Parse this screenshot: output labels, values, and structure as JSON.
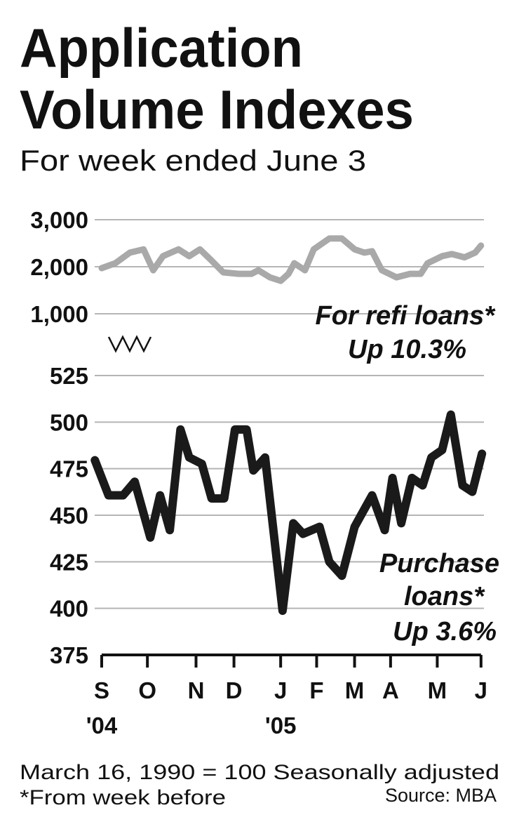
{
  "title": [
    "Application",
    "Volume Indexes"
  ],
  "subtitle": "For week ended June 3",
  "note": "March 16, 1990 = 100 Seasonally adjusted",
  "footnote": "*From week before",
  "source": "Source: MBA",
  "chart_data": [
    {
      "type": "line",
      "annotations": [
        "For refi loans*",
        "Up 10.3%"
      ],
      "xlim": [
        -0.72,
        39.3
      ],
      "ylim": [
        1000,
        3000
      ],
      "yticks": [
        {
          "value": 1000,
          "label": "1,000"
        },
        {
          "value": 2000,
          "label": "2,000"
        },
        {
          "value": 3000,
          "label": "3,000"
        }
      ],
      "grid": true,
      "series": [
        {
          "color": "#a9a9a9",
          "x": [
            0,
            1.4,
            2.9,
            4.3,
            5.3,
            6.3,
            7.9,
            9,
            10.1,
            11.2,
            12.5,
            14.1,
            15.4,
            16.1,
            17.3,
            18.4,
            19.2,
            19.8,
            20.9,
            21.8,
            23.4,
            24.7,
            26,
            27,
            27.8,
            28.8,
            30.3,
            31.7,
            32.8,
            33.5,
            35,
            36,
            37.3,
            38.4,
            39
          ],
          "values": [
            1970,
            2075,
            2300,
            2370,
            1925,
            2225,
            2370,
            2225,
            2370,
            2150,
            1880,
            1850,
            1850,
            1925,
            1775,
            1700,
            1850,
            2075,
            1925,
            2370,
            2600,
            2600,
            2370,
            2300,
            2330,
            1925,
            1775,
            1850,
            1850,
            2075,
            2225,
            2270,
            2200,
            2300,
            2450
          ]
        }
      ]
    },
    {
      "type": "line",
      "annotations": [
        "Purchase",
        "loans*",
        "Up 3.6%"
      ],
      "xlim": [
        -0.72,
        39.3
      ],
      "ylim": [
        375,
        525
      ],
      "yticks": [
        375,
        400,
        425,
        450,
        475,
        500,
        525
      ],
      "xticks": [
        {
          "value": 0,
          "label": "S"
        },
        {
          "value": 4.7,
          "label": "O"
        },
        {
          "value": 9.7,
          "label": "N"
        },
        {
          "value": 13.6,
          "label": "D"
        },
        {
          "value": 18.4,
          "label": "J"
        },
        {
          "value": 22.1,
          "label": "F"
        },
        {
          "value": 26,
          "label": "M"
        },
        {
          "value": 29.7,
          "label": "A"
        },
        {
          "value": 34.5,
          "label": "M"
        },
        {
          "value": 39,
          "label": "J"
        }
      ],
      "year_labels": [
        {
          "value": 0,
          "label": "'04"
        },
        {
          "value": 18.4,
          "label": "'05"
        }
      ],
      "grid": true,
      "series": [
        {
          "color": "#1a1a1a",
          "x": [
            -0.7,
            0.7,
            2.2,
            3.4,
            5,
            6,
            7,
            8.1,
            9,
            10.3,
            11.3,
            12.6,
            13.7,
            14.9,
            15.6,
            16.8,
            17.7,
            18.6,
            19.7,
            20.7,
            22.4,
            23.4,
            24.7,
            26,
            27.8,
            29.1,
            29.9,
            30.8,
            31.9,
            33,
            33.9,
            35,
            35.9,
            37.1,
            38.1,
            39.1
          ],
          "values": [
            479.5,
            460.7,
            460.7,
            468,
            438,
            460.7,
            442,
            496,
            481,
            477.6,
            459,
            459,
            496,
            496,
            474,
            481,
            440,
            398.7,
            445.7,
            440,
            443.8,
            425,
            417.5,
            443.8,
            460.7,
            442,
            470,
            445.7,
            470,
            466,
            481,
            485,
            504,
            466,
            462.6,
            483
          ]
        }
      ]
    }
  ]
}
